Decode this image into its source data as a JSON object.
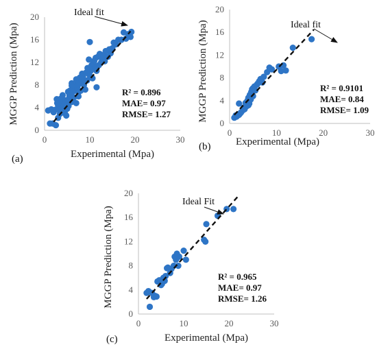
{
  "chart_data": [
    {
      "type": "scatter",
      "panel_label": "(a)",
      "xlabel": "Experimental (Mpa)",
      "ylabel": "MGGP Prediction (Mpa)",
      "xlim": [
        0,
        30
      ],
      "ylim": [
        0,
        20
      ],
      "xticks": [
        "0",
        "10",
        "20",
        "30"
      ],
      "yticks": [
        "0",
        "4",
        "8",
        "12",
        "16",
        "20"
      ],
      "annotation": "Ideal fit",
      "stats": [
        "R² = 0.896",
        "MAE= 0.97",
        "RMSE= 1.27"
      ],
      "fit_line": [
        [
          2,
          1.5
        ],
        [
          19,
          17.5
        ]
      ],
      "x": [
        0.8,
        1.2,
        1.5,
        1.8,
        2.0,
        2.3,
        2.5,
        2.7,
        3.0,
        3.2,
        3.4,
        3.6,
        3.8,
        4.0,
        4.0,
        4.2,
        4.4,
        4.5,
        4.7,
        4.8,
        5.0,
        5.0,
        5.2,
        5.3,
        5.5,
        5.6,
        5.8,
        6.0,
        6.0,
        6.2,
        6.3,
        6.5,
        6.7,
        6.8,
        7.0,
        7.0,
        7.2,
        7.4,
        7.5,
        7.6,
        7.8,
        8.0,
        8.2,
        8.3,
        8.5,
        8.7,
        9.0,
        9.2,
        9.4,
        9.5,
        9.7,
        10.0,
        10.0,
        10.2,
        10.4,
        10.6,
        10.8,
        11.0,
        11.2,
        11.3,
        11.5,
        11.8,
        12.0,
        12.2,
        12.5,
        12.8,
        13.0,
        13.3,
        13.5,
        14.0,
        14.3,
        14.6,
        15.0,
        15.3,
        15.8,
        16.3,
        17.0,
        17.5,
        18.0,
        18.5,
        19.0,
        19.2,
        6.0,
        9.8,
        3.0,
        5.5,
        7.5,
        11.5,
        4.5,
        2.8
      ],
      "y": [
        3.5,
        1.2,
        3.7,
        1.2,
        3.2,
        3.6,
        0.9,
        5.5,
        4.3,
        3.6,
        2.9,
        5.6,
        5.0,
        4.0,
        6.2,
        3.5,
        4.6,
        3.0,
        5.3,
        2.6,
        3.8,
        5.0,
        6.8,
        4.3,
        5.8,
        7.0,
        6.5,
        5.0,
        8.3,
        6.8,
        7.2,
        5.8,
        8.0,
        7.0,
        4.8,
        9.0,
        7.5,
        8.0,
        6.7,
        8.5,
        9.3,
        7.0,
        8.8,
        10.0,
        9.5,
        8.0,
        7.2,
        10.2,
        8.8,
        11.0,
        10.0,
        9.6,
        15.6,
        10.5,
        11.5,
        9.2,
        11.8,
        12.3,
        11.0,
        12.8,
        10.5,
        13.0,
        11.5,
        13.5,
        12.0,
        12.6,
        13.3,
        12.2,
        14.0,
        13.0,
        14.3,
        13.6,
        14.5,
        15.5,
        15.2,
        16.0,
        16.0,
        17.3,
        16.2,
        17.0,
        16.5,
        17.4,
        7.9,
        12.5,
        2.2,
        6.2,
        6.0,
        7.6,
        4.5,
        4.8
      ]
    },
    {
      "type": "scatter",
      "panel_label": "(b)",
      "xlabel": "Experimental (Mpa)",
      "ylabel": "MGGP Prediction (Mpa)",
      "xlim": [
        0,
        30
      ],
      "ylim": [
        0,
        20
      ],
      "xticks": [
        "0",
        "10",
        "20",
        "30"
      ],
      "yticks": [
        "0",
        "4",
        "8",
        "12",
        "16",
        "20"
      ],
      "annotation": "Ideal fit",
      "stats": [
        "R² = 0.9101",
        "MAE= 0.84",
        "RMSE= 1.09"
      ],
      "fit_line": [
        [
          1,
          1.5
        ],
        [
          18,
          16.5
        ]
      ],
      "x": [
        1.0,
        1.3,
        1.5,
        1.8,
        2.0,
        2.0,
        2.3,
        2.5,
        2.8,
        3.0,
        3.2,
        3.4,
        3.6,
        3.8,
        4.0,
        4.0,
        4.2,
        4.3,
        4.5,
        4.6,
        4.8,
        5.0,
        5.0,
        5.3,
        5.5,
        5.8,
        6.0,
        6.3,
        6.6,
        7.0,
        7.3,
        8.0,
        8.5,
        9.0,
        10.5,
        11.0,
        11.5,
        12.0,
        13.5,
        17.5
      ],
      "y": [
        1.0,
        1.4,
        1.2,
        1.6,
        3.5,
        1.5,
        1.8,
        2.0,
        2.3,
        2.8,
        2.5,
        3.6,
        3.0,
        4.0,
        3.2,
        4.5,
        3.5,
        5.0,
        4.2,
        5.5,
        6.0,
        4.8,
        6.2,
        6.5,
        5.8,
        6.8,
        7.0,
        7.4,
        7.8,
        7.2,
        8.2,
        9.0,
        9.8,
        9.5,
        10.0,
        9.2,
        10.2,
        9.3,
        13.3,
        14.8
      ]
    },
    {
      "type": "scatter",
      "panel_label": "(c)",
      "xlabel": "Experimental (Mpa)",
      "ylabel": "MGGP Prediction (Mpa)",
      "xlim": [
        0,
        30
      ],
      "ylim": [
        0,
        20
      ],
      "xticks": [
        "0",
        "10",
        "20",
        "30"
      ],
      "yticks": [
        "0",
        "4",
        "8",
        "12",
        "16",
        "20"
      ],
      "annotation": "Ideal Fit",
      "stats": [
        "R² = 0.965",
        "MAE= 0.97",
        "RMSE= 1.26"
      ],
      "fit_line": [
        [
          1.8,
          2.5
        ],
        [
          22,
          19.5
        ]
      ],
      "x": [
        1.8,
        2.2,
        2.5,
        3.0,
        3.4,
        3.7,
        4.0,
        4.2,
        4.5,
        5.0,
        5.2,
        5.5,
        5.8,
        6.0,
        6.3,
        6.5,
        7.0,
        7.3,
        7.8,
        8.0,
        8.3,
        8.5,
        8.8,
        9.0,
        10.0,
        10.5,
        14.5,
        14.8,
        15.0,
        17.5,
        19.5,
        21.0,
        2.3,
        4.6
      ],
      "y": [
        3.5,
        3.8,
        1.2,
        3.5,
        2.8,
        3.0,
        2.9,
        5.4,
        5.5,
        4.8,
        5.0,
        6.0,
        5.5,
        6.3,
        7.6,
        7.7,
        6.8,
        7.5,
        8.0,
        9.5,
        9.0,
        10.0,
        8.0,
        9.5,
        10.5,
        9.0,
        12.3,
        12.0,
        14.9,
        16.3,
        17.4,
        17.4,
        3.7,
        5.6
      ]
    }
  ]
}
